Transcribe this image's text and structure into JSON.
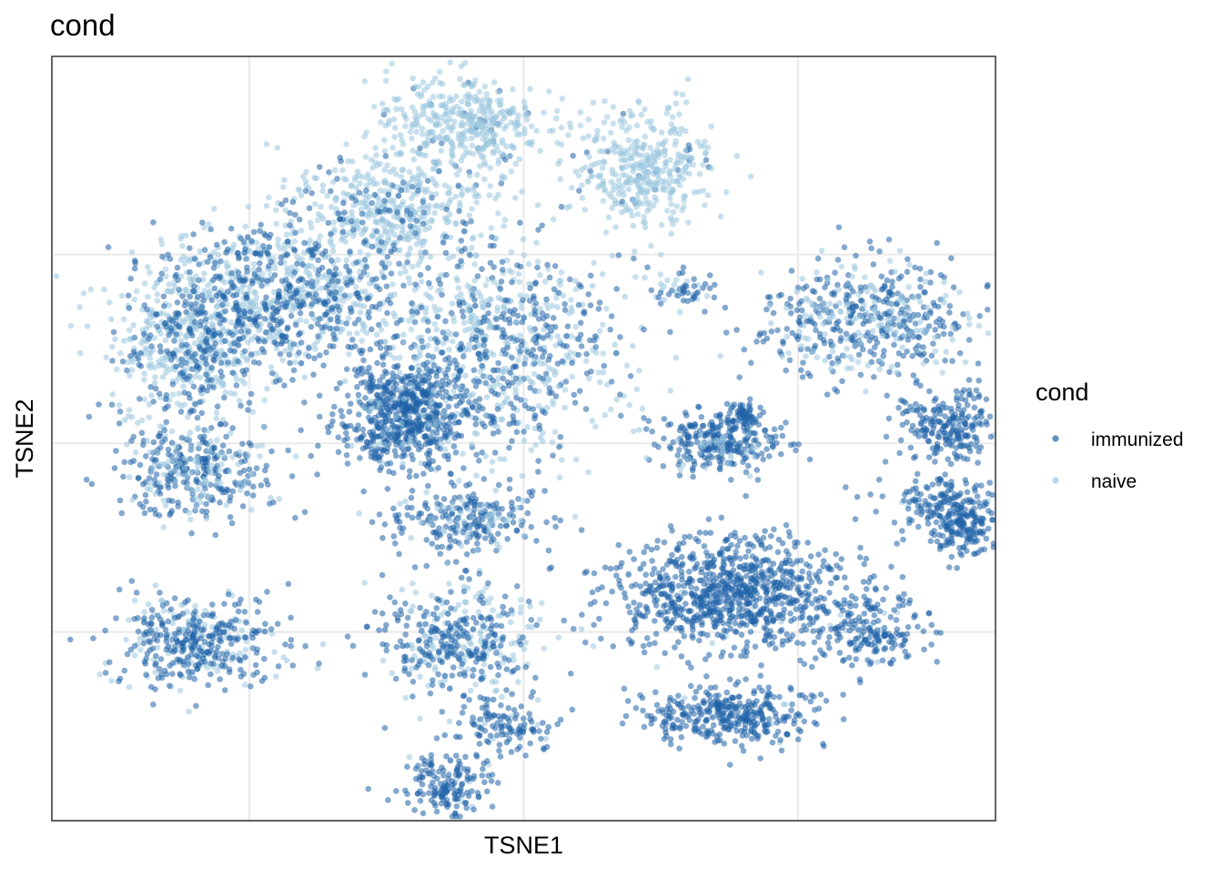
{
  "chart_data": {
    "type": "scatter",
    "title": "cond",
    "xlabel": "TSNE1",
    "ylabel": "TSNE2",
    "xlim": [
      -43,
      43
    ],
    "ylim": [
      -40,
      41
    ],
    "x_breaks": [
      -25,
      0,
      25,
      50
    ],
    "y_breaks": [
      -40,
      -20,
      0,
      20
    ],
    "tick_labels_visible": false,
    "grid": true,
    "legend": {
      "title": "cond",
      "position": "right",
      "entries": [
        {
          "label": "immunized",
          "color": "#1f63a8"
        },
        {
          "label": "naive",
          "color": "#9ac6de"
        }
      ]
    },
    "series": [
      {
        "name": "immunized",
        "color": "#1f63a8"
      },
      {
        "name": "naive",
        "color": "#9ac6de"
      }
    ],
    "clusters": [
      {
        "cx": -22,
        "cy": 16,
        "sx": 9.5,
        "sy": 6.5,
        "n": 900,
        "p_imm": 0.45
      },
      {
        "cx": -30,
        "cy": 10,
        "sx": 6,
        "sy": 6,
        "n": 500,
        "p_imm": 0.35
      },
      {
        "cx": -12,
        "cy": 25,
        "sx": 7,
        "sy": 5,
        "n": 450,
        "p_imm": 0.15
      },
      {
        "cx": -2,
        "cy": 10,
        "sx": 9,
        "sy": 9,
        "n": 800,
        "p_imm": 0.45
      },
      {
        "cx": -11,
        "cy": 3,
        "sx": 4.5,
        "sy": 4.5,
        "n": 600,
        "p_imm": 0.95
      },
      {
        "cx": -30,
        "cy": -3,
        "sx": 6,
        "sy": 4,
        "n": 350,
        "p_imm": 0.7
      },
      {
        "cx": -5,
        "cy": -8,
        "sx": 5.5,
        "sy": 3,
        "n": 250,
        "p_imm": 0.8
      },
      {
        "cx": -5,
        "cy": 34,
        "sx": 6,
        "sy": 4,
        "n": 400,
        "p_imm": 0.05
      },
      {
        "cx": 11,
        "cy": 29,
        "sx": 5,
        "sy": 5,
        "n": 380,
        "p_imm": 0.05
      },
      {
        "cx": 31,
        "cy": 13,
        "sx": 8,
        "sy": 5,
        "n": 500,
        "p_imm": 0.7
      },
      {
        "cx": 18,
        "cy": 0,
        "sx": 4.5,
        "sy": 2.5,
        "n": 280,
        "p_imm": 0.85
      },
      {
        "cx": 39,
        "cy": 2,
        "sx": 3.5,
        "sy": 3,
        "n": 220,
        "p_imm": 0.95
      },
      {
        "cx": 40,
        "cy": -9,
        "sx": 2.5,
        "sy": 2.5,
        "n": 160,
        "p_imm": 0.98
      },
      {
        "cx": 19,
        "cy": -16,
        "sx": 9,
        "sy": 5,
        "n": 900,
        "p_imm": 0.97
      },
      {
        "cx": 19,
        "cy": -29,
        "sx": 6.5,
        "sy": 2.5,
        "n": 350,
        "p_imm": 0.97
      },
      {
        "cx": 32,
        "cy": -20,
        "sx": 4,
        "sy": 3,
        "n": 160,
        "p_imm": 0.92
      },
      {
        "cx": -30,
        "cy": -21,
        "sx": 6,
        "sy": 4,
        "n": 400,
        "p_imm": 0.7
      },
      {
        "cx": -6,
        "cy": -21,
        "sx": 5.5,
        "sy": 4.5,
        "n": 400,
        "p_imm": 0.55
      },
      {
        "cx": -2,
        "cy": -30,
        "sx": 4,
        "sy": 2.5,
        "n": 120,
        "p_imm": 0.9
      },
      {
        "cx": -7,
        "cy": -36,
        "sx": 3.5,
        "sy": 2.5,
        "n": 160,
        "p_imm": 0.92
      },
      {
        "cx": 15,
        "cy": 16,
        "sx": 2,
        "sy": 1.5,
        "n": 50,
        "p_imm": 0.6
      },
      {
        "cx": 20,
        "cy": 3,
        "sx": 1.5,
        "sy": 1,
        "n": 60,
        "p_imm": 1.0
      },
      {
        "cx": 38,
        "cy": -6,
        "sx": 5,
        "sy": 3,
        "n": 140,
        "p_imm": 0.95
      }
    ]
  }
}
